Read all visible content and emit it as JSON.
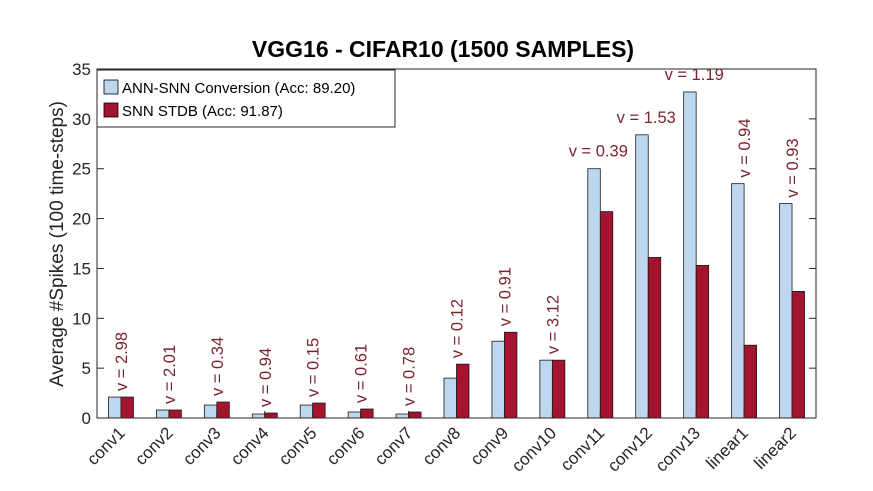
{
  "chart_data": {
    "type": "bar",
    "title": "VGG16 - CIFAR10 (1500 SAMPLES)",
    "xlabel": "",
    "ylabel": "Average #Spikes (100 time-steps)",
    "ylim": [
      0,
      35
    ],
    "yticks": [
      0,
      5,
      10,
      15,
      20,
      25,
      30,
      35
    ],
    "categories": [
      "conv1",
      "conv2",
      "conv3",
      "conv4",
      "conv5",
      "conv6",
      "conv7",
      "conv8",
      "conv9",
      "conv10",
      "conv11",
      "conv12",
      "conv13",
      "linear1",
      "linear2"
    ],
    "series": [
      {
        "name": "ANN-SNN Conversion (Acc: 89.20)",
        "color": "#bdd7f0",
        "values": [
          2.1,
          0.8,
          1.3,
          0.4,
          1.3,
          0.6,
          0.4,
          4.0,
          7.7,
          5.8,
          25.0,
          28.4,
          32.7,
          23.5,
          21.5
        ]
      },
      {
        "name": "SNN STDB (Acc: 91.87)",
        "color": "#a3142e",
        "values": [
          2.1,
          0.8,
          1.6,
          0.5,
          1.5,
          0.9,
          0.6,
          5.4,
          8.6,
          5.8,
          20.7,
          16.1,
          15.3,
          7.3,
          12.7
        ]
      }
    ],
    "annotations": [
      "v = 2.98",
      "v = 2.01",
      "v = 0.34",
      "v = 0.94",
      "v = 0.15",
      "v = 0.61",
      "v = 0.78",
      "v = 0.12",
      "v = 0.91",
      "v = 3.12",
      "v = 0.39",
      "v = 1.53",
      "v = 1.19",
      "v = 0.94",
      "v = 0.93"
    ],
    "annotation_color": "#7a2530",
    "legend_position": "top-left",
    "grid": false
  }
}
